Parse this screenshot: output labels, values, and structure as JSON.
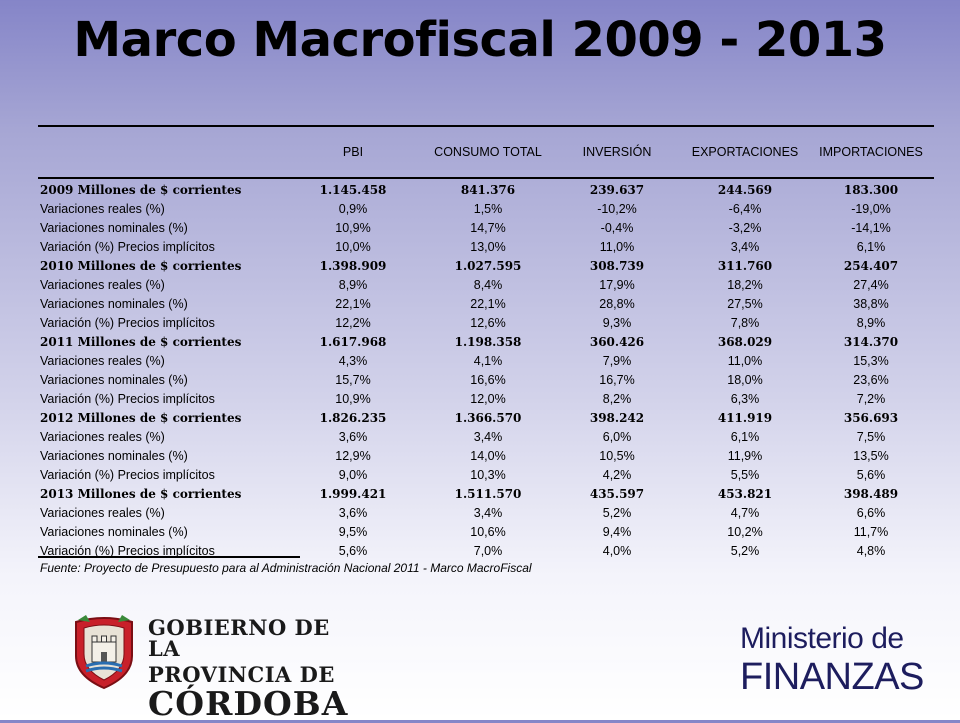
{
  "title": "Marco Macrofiscal 2009 - 2013",
  "table": {
    "columns": [
      "PBI",
      "CONSUMO TOTAL",
      "INVERSIÓN",
      "EXPORTACIONES",
      "IMPORTACIONES"
    ],
    "rows": [
      {
        "label": "2009 Millones de $ corrientes",
        "bold": true,
        "values": [
          "1.145.458",
          "841.376",
          "239.637",
          "244.569",
          "183.300"
        ]
      },
      {
        "label": "Variaciones reales (%)",
        "values": [
          "0,9%",
          "1,5%",
          "-10,2%",
          "-6,4%",
          "-19,0%"
        ]
      },
      {
        "label": "Variaciones nominales (%)",
        "values": [
          "10,9%",
          "14,7%",
          "-0,4%",
          "-3,2%",
          "-14,1%"
        ]
      },
      {
        "label": "Variación (%) Precios implícitos",
        "values": [
          "10,0%",
          "13,0%",
          "11,0%",
          "3,4%",
          "6,1%"
        ]
      },
      {
        "label": "2010 Millones de $ corrientes",
        "bold": true,
        "values": [
          "1.398.909",
          "1.027.595",
          "308.739",
          "311.760",
          "254.407"
        ]
      },
      {
        "label": "Variaciones reales (%)",
        "values": [
          "8,9%",
          "8,4%",
          "17,9%",
          "18,2%",
          "27,4%"
        ]
      },
      {
        "label": "Variaciones nominales (%)",
        "values": [
          "22,1%",
          "22,1%",
          "28,8%",
          "27,5%",
          "38,8%"
        ]
      },
      {
        "label": "Variación (%) Precios implícitos",
        "values": [
          "12,2%",
          "12,6%",
          "9,3%",
          "7,8%",
          "8,9%"
        ]
      },
      {
        "label": "2011 Millones de $ corrientes",
        "bold": true,
        "values": [
          "1.617.968",
          "1.198.358",
          "360.426",
          "368.029",
          "314.370"
        ]
      },
      {
        "label": "Variaciones reales (%)",
        "values": [
          "4,3%",
          "4,1%",
          "7,9%",
          "11,0%",
          "15,3%"
        ]
      },
      {
        "label": "Variaciones nominales (%)",
        "values": [
          "15,7%",
          "16,6%",
          "16,7%",
          "18,0%",
          "23,6%"
        ]
      },
      {
        "label": "Variación (%) Precios implícitos",
        "values": [
          "10,9%",
          "12,0%",
          "8,2%",
          "6,3%",
          "7,2%"
        ]
      },
      {
        "label": "2012 Millones de $ corrientes",
        "bold": true,
        "values": [
          "1.826.235",
          "1.366.570",
          "398.242",
          "411.919",
          "356.693"
        ]
      },
      {
        "label": "Variaciones reales (%)",
        "values": [
          "3,6%",
          "3,4%",
          "6,0%",
          "6,1%",
          "7,5%"
        ]
      },
      {
        "label": "Variaciones nominales (%)",
        "values": [
          "12,9%",
          "14,0%",
          "10,5%",
          "11,9%",
          "13,5%"
        ]
      },
      {
        "label": "Variación (%) Precios implícitos",
        "values": [
          "9,0%",
          "10,3%",
          "4,2%",
          "5,5%",
          "5,6%"
        ]
      },
      {
        "label": "2013 Millones de $ corrientes",
        "bold": true,
        "values": [
          "1.999.421",
          "1.511.570",
          "435.597",
          "453.821",
          "398.489"
        ]
      },
      {
        "label": "Variaciones reales (%)",
        "values": [
          "3,6%",
          "3,4%",
          "5,2%",
          "4,7%",
          "6,6%"
        ]
      },
      {
        "label": "Variaciones nominales (%)",
        "values": [
          "9,5%",
          "10,6%",
          "9,4%",
          "10,2%",
          "11,7%"
        ]
      },
      {
        "label": "Variación (%) Precios implícitos",
        "values": [
          "5,6%",
          "7,0%",
          "4,0%",
          "5,2%",
          "4,8%"
        ]
      }
    ],
    "source": "Fuente: Proyecto de Presupuesto para al Administración Nacional  2011 - Marco MacroFiscal"
  },
  "logos": {
    "gobierno": {
      "line1": "GOBIERNO DE LA",
      "line2": "PROVINCIA DE",
      "line3": "CÓRDOBA",
      "icon": "cordoba-coat-of-arms-icon"
    },
    "ministerio": {
      "line1": "Ministerio de",
      "line2": "FINANZAS"
    }
  },
  "colors": {
    "background_top": "#8585c8",
    "background_bottom": "#ffffff",
    "ministerio_text": "#1d1d5e",
    "shield_red": "#c8202a"
  }
}
